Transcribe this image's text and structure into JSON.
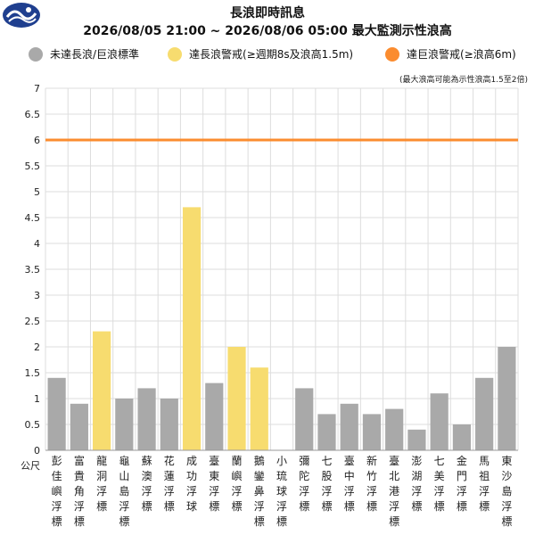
{
  "header": {
    "logo_icon": "cwa-logo-icon",
    "title": "長浪即時訊息",
    "subtitle": "2026/08/05 21:00 ~ 2026/08/06 05:00 最大監測示性浪高",
    "note": "(最大浪高可能為示性浪高1.5至2倍)"
  },
  "legend": [
    {
      "label": "未達長浪/巨浪標準",
      "color": "#a9a9a9"
    },
    {
      "label": "達長浪警戒(≥週期8s及浪高1.5m)",
      "color": "#f7dc6f"
    },
    {
      "label": "達巨浪警戒(≥浪高6m)",
      "color": "#fb8c2f"
    }
  ],
  "colors": {
    "gray": "#a9a9a9",
    "yellow": "#f7dc6f",
    "orange": "#fb8c2f",
    "grid": "#dddddd"
  },
  "chart_data": {
    "type": "bar",
    "ylabel": "公尺",
    "ylim": [
      0,
      7
    ],
    "yticks": [
      "0",
      "0.5",
      "1",
      "1.5",
      "2",
      "2.5",
      "3",
      "3.5",
      "4",
      "4.5",
      "5",
      "5.5",
      "6",
      "6.5",
      "7"
    ],
    "threshold": 6,
    "categories": [
      "彭佳嶼浮標",
      "富貴角浮標",
      "龍洞浮標",
      "龜山島浮標",
      "蘇澳浮標",
      "花蓮浮標",
      "成功浮球",
      "臺東浮標",
      "蘭嶼浮標",
      "鵝鑾鼻浮標",
      "小琉球浮標",
      "彌陀浮標",
      "七股浮標",
      "臺中浮標",
      "新竹浮標",
      "臺北港浮標",
      "澎湖浮標",
      "七美浮標",
      "金門浮標",
      "馬祖浮標",
      "東沙島浮標"
    ],
    "values": [
      1.4,
      0.9,
      2.3,
      1.0,
      1.2,
      1.0,
      4.7,
      1.3,
      2.0,
      1.6,
      null,
      1.2,
      0.7,
      0.9,
      0.7,
      0.8,
      0.4,
      1.1,
      0.5,
      1.4,
      2.0
    ],
    "status": [
      "gray",
      "gray",
      "yellow",
      "gray",
      "gray",
      "gray",
      "yellow",
      "gray",
      "yellow",
      "yellow",
      "none",
      "gray",
      "gray",
      "gray",
      "gray",
      "gray",
      "gray",
      "gray",
      "gray",
      "gray",
      "gray"
    ],
    "grid": true,
    "legend_position": "top"
  }
}
